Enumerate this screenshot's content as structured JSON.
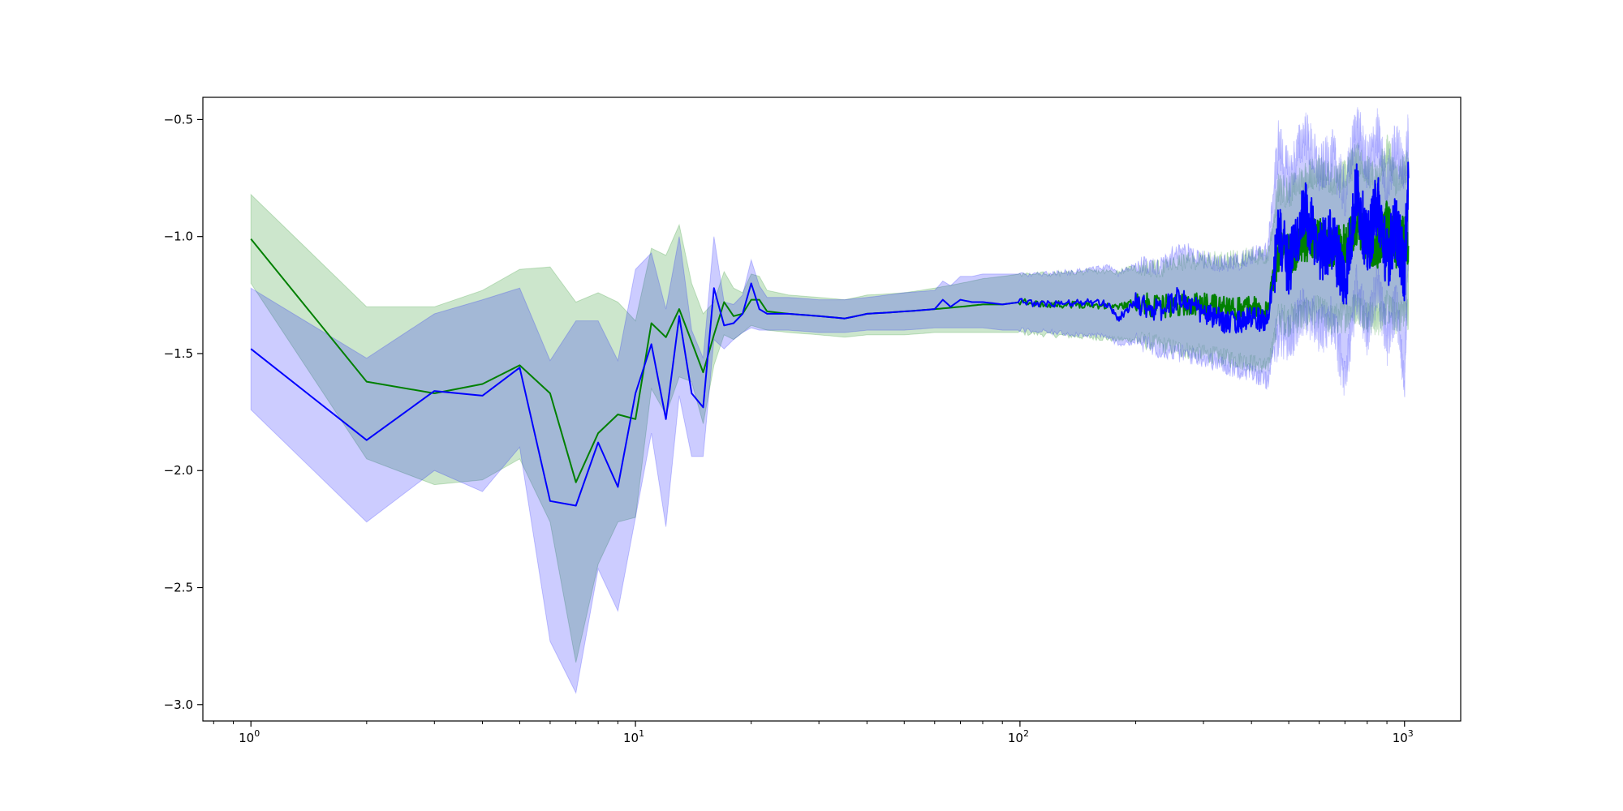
{
  "chart_data": {
    "type": "line",
    "title": "",
    "xlabel": "",
    "ylabel": "",
    "xscale": "log",
    "xlim": [
      0.75,
      1400
    ],
    "ylim": [
      -3.07,
      -0.405
    ],
    "grid": false,
    "legend": "none",
    "x_ticks": [
      {
        "value": 1,
        "base": "10",
        "exp": "0"
      },
      {
        "value": 10,
        "base": "10",
        "exp": "1"
      },
      {
        "value": 100,
        "base": "10",
        "exp": "2"
      },
      {
        "value": 1000,
        "base": "10",
        "exp": "3"
      }
    ],
    "y_ticks": [
      {
        "value": -0.5,
        "label": "−0.5"
      },
      {
        "value": -1.0,
        "label": "−1.0"
      },
      {
        "value": -1.5,
        "label": "−1.5"
      },
      {
        "value": -2.0,
        "label": "−2.0"
      },
      {
        "value": -2.5,
        "label": "−2.5"
      },
      {
        "value": -3.0,
        "label": "−3.0"
      }
    ],
    "series": [
      {
        "color": "#008000",
        "band_color": "#008000",
        "band_opacity": 0.2,
        "x": [
          1,
          2,
          3,
          4,
          5,
          6,
          7,
          8,
          9,
          10,
          11,
          12,
          13,
          14,
          15,
          16,
          17,
          18,
          19,
          20,
          21,
          22,
          25,
          30,
          35,
          40,
          50,
          60,
          70,
          80,
          90,
          100,
          120,
          150,
          180,
          200,
          230,
          260,
          300,
          350,
          400,
          440,
          470,
          500,
          550,
          600,
          650,
          700,
          750,
          800,
          850,
          900,
          950,
          1000,
          1024
        ],
        "y": [
          -1.01,
          -1.62,
          -1.67,
          -1.63,
          -1.55,
          -1.67,
          -2.05,
          -1.84,
          -1.76,
          -1.78,
          -1.37,
          -1.43,
          -1.31,
          -1.45,
          -1.58,
          -1.42,
          -1.28,
          -1.34,
          -1.33,
          -1.27,
          -1.27,
          -1.32,
          -1.33,
          -1.34,
          -1.35,
          -1.33,
          -1.32,
          -1.31,
          -1.3,
          -1.29,
          -1.29,
          -1.28,
          -1.29,
          -1.29,
          -1.3,
          -1.28,
          -1.3,
          -1.29,
          -1.29,
          -1.31,
          -1.3,
          -1.32,
          -1.06,
          -1.08,
          -1.02,
          -1.0,
          -1.05,
          -1.03,
          -0.95,
          -1.02,
          -1.06,
          -0.93,
          -1.05,
          -0.99,
          -1.04
        ],
        "lower": [
          -1.2,
          -1.95,
          -2.06,
          -2.04,
          -1.95,
          -2.22,
          -2.82,
          -2.4,
          -2.22,
          -2.2,
          -1.65,
          -1.76,
          -1.6,
          -1.62,
          -1.8,
          -1.55,
          -1.42,
          -1.44,
          -1.41,
          -1.38,
          -1.39,
          -1.4,
          -1.41,
          -1.42,
          -1.43,
          -1.42,
          -1.42,
          -1.41,
          -1.41,
          -1.41,
          -1.41,
          -1.41,
          -1.42,
          -1.43,
          -1.44,
          -1.44,
          -1.46,
          -1.48,
          -1.5,
          -1.52,
          -1.54,
          -1.56,
          -1.35,
          -1.36,
          -1.33,
          -1.32,
          -1.36,
          -1.34,
          -1.3,
          -1.34,
          -1.36,
          -1.3,
          -1.35,
          -1.32,
          -1.33
        ],
        "upper": [
          -0.82,
          -1.3,
          -1.3,
          -1.23,
          -1.14,
          -1.13,
          -1.28,
          -1.24,
          -1.28,
          -1.36,
          -1.05,
          -1.08,
          -0.95,
          -1.2,
          -1.33,
          -1.28,
          -1.15,
          -1.22,
          -1.24,
          -1.16,
          -1.17,
          -1.23,
          -1.25,
          -1.26,
          -1.27,
          -1.25,
          -1.24,
          -1.22,
          -1.2,
          -1.18,
          -1.17,
          -1.16,
          -1.16,
          -1.15,
          -1.15,
          -1.13,
          -1.14,
          -1.11,
          -1.1,
          -1.1,
          -1.08,
          -1.09,
          -0.8,
          -0.81,
          -0.74,
          -0.72,
          -0.76,
          -0.74,
          -0.66,
          -0.72,
          -0.76,
          -0.62,
          -0.76,
          -0.7,
          -0.7
        ]
      },
      {
        "color": "#0000ff",
        "band_color": "#0000ff",
        "band_opacity": 0.2,
        "x": [
          1,
          2,
          3,
          4,
          5,
          6,
          7,
          8,
          9,
          10,
          11,
          12,
          13,
          14,
          15,
          16,
          17,
          18,
          19,
          20,
          21,
          22,
          25,
          30,
          35,
          40,
          50,
          60,
          63,
          66,
          70,
          75,
          80,
          90,
          100,
          120,
          150,
          170,
          180,
          200,
          230,
          260,
          300,
          350,
          400,
          440,
          470,
          500,
          550,
          600,
          650,
          700,
          750,
          800,
          850,
          900,
          950,
          1000,
          1024
        ],
        "y": [
          -1.48,
          -1.87,
          -1.66,
          -1.68,
          -1.56,
          -2.13,
          -2.15,
          -1.88,
          -2.07,
          -1.67,
          -1.46,
          -1.78,
          -1.34,
          -1.67,
          -1.73,
          -1.22,
          -1.38,
          -1.37,
          -1.33,
          -1.2,
          -1.31,
          -1.33,
          -1.33,
          -1.34,
          -1.35,
          -1.33,
          -1.32,
          -1.31,
          -1.27,
          -1.3,
          -1.27,
          -1.28,
          -1.28,
          -1.29,
          -1.28,
          -1.29,
          -1.28,
          -1.29,
          -1.35,
          -1.28,
          -1.32,
          -1.26,
          -1.33,
          -1.37,
          -1.35,
          -1.36,
          -0.98,
          -1.12,
          -0.9,
          -1.06,
          -1.01,
          -1.2,
          -0.8,
          -1.05,
          -0.85,
          -1.1,
          -0.95,
          -1.15,
          -0.75
        ],
        "lower": [
          -1.74,
          -2.22,
          -2.0,
          -2.09,
          -1.9,
          -2.73,
          -2.95,
          -2.42,
          -2.6,
          -2.2,
          -1.84,
          -2.24,
          -1.68,
          -1.94,
          -1.94,
          -1.44,
          -1.48,
          -1.44,
          -1.41,
          -1.39,
          -1.4,
          -1.4,
          -1.4,
          -1.41,
          -1.41,
          -1.4,
          -1.4,
          -1.39,
          -1.39,
          -1.39,
          -1.39,
          -1.39,
          -1.39,
          -1.4,
          -1.4,
          -1.41,
          -1.42,
          -1.43,
          -1.46,
          -1.45,
          -1.48,
          -1.5,
          -1.52,
          -1.56,
          -1.58,
          -1.62,
          -1.4,
          -1.44,
          -1.3,
          -1.4,
          -1.35,
          -1.63,
          -1.22,
          -1.4,
          -1.2,
          -1.45,
          -1.3,
          -1.6,
          -1.1
        ],
        "upper": [
          -1.22,
          -1.52,
          -1.33,
          -1.27,
          -1.22,
          -1.53,
          -1.36,
          -1.36,
          -1.53,
          -1.14,
          -1.07,
          -1.31,
          -1.0,
          -1.4,
          -1.52,
          -1.0,
          -1.28,
          -1.29,
          -1.25,
          -1.1,
          -1.21,
          -1.26,
          -1.26,
          -1.27,
          -1.27,
          -1.26,
          -1.24,
          -1.23,
          -1.19,
          -1.21,
          -1.17,
          -1.17,
          -1.16,
          -1.16,
          -1.16,
          -1.16,
          -1.14,
          -1.13,
          -1.16,
          -1.12,
          -1.13,
          -1.05,
          -1.1,
          -1.12,
          -1.08,
          -1.06,
          -0.6,
          -0.75,
          -0.55,
          -0.72,
          -0.65,
          -0.82,
          -0.51,
          -0.7,
          -0.56,
          -0.78,
          -0.6,
          -0.72,
          -0.55
        ]
      }
    ]
  }
}
